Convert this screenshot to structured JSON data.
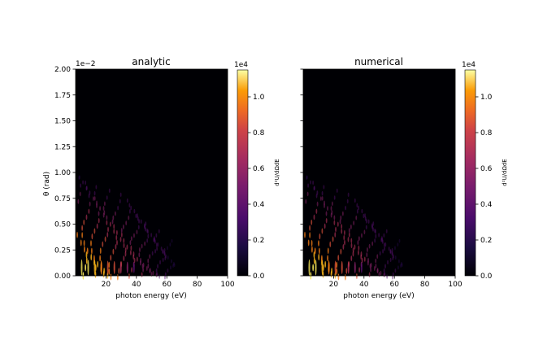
{
  "chart_data": [
    {
      "type": "heatmap",
      "title": "analytic",
      "xlabel": "photon energy (eV)",
      "ylabel": "θ (rad)",
      "y_offset_label": "1e−2",
      "xlim": [
        0,
        100
      ],
      "ylim": [
        0,
        2.0
      ],
      "x_ticks": [
        "20",
        "40",
        "60",
        "80",
        "100"
      ],
      "x_tick_values": [
        20,
        40,
        60,
        80,
        100
      ],
      "y_ticks": [
        "0.00",
        "0.25",
        "0.50",
        "0.75",
        "1.00",
        "1.25",
        "1.50",
        "1.75",
        "2.00"
      ],
      "y_tick_values": [
        0,
        0.25,
        0.5,
        0.75,
        1.0,
        1.25,
        1.5,
        1.75,
        2.0
      ],
      "colormap": "inferno",
      "colorbar": {
        "label": "d²U/dΩdE",
        "offset_label": "1e4",
        "range": [
          0,
          1.15
        ],
        "ticks": [
          "0.0",
          "0.2",
          "0.4",
          "0.6",
          "0.8",
          "1.0"
        ],
        "tick_values": [
          0,
          0.2,
          0.4,
          0.6,
          0.8,
          1.0
        ]
      }
    },
    {
      "type": "heatmap",
      "title": "numerical",
      "xlabel": "photon energy (eV)",
      "ylabel": "",
      "xlim": [
        0,
        100
      ],
      "ylim": [
        0,
        2.0
      ],
      "x_ticks": [
        "20",
        "40",
        "60",
        "80",
        "100"
      ],
      "x_tick_values": [
        20,
        40,
        60,
        80,
        100
      ],
      "colormap": "inferno",
      "colorbar": {
        "label": "d²U/dΩdE",
        "offset_label": "1e4",
        "range": [
          0,
          1.15
        ],
        "ticks": [
          "0.0",
          "0.2",
          "0.4",
          "0.6",
          "0.8",
          "1.0"
        ],
        "tick_values": [
          0,
          0.2,
          0.4,
          0.6,
          0.8,
          1.0
        ]
      }
    }
  ]
}
